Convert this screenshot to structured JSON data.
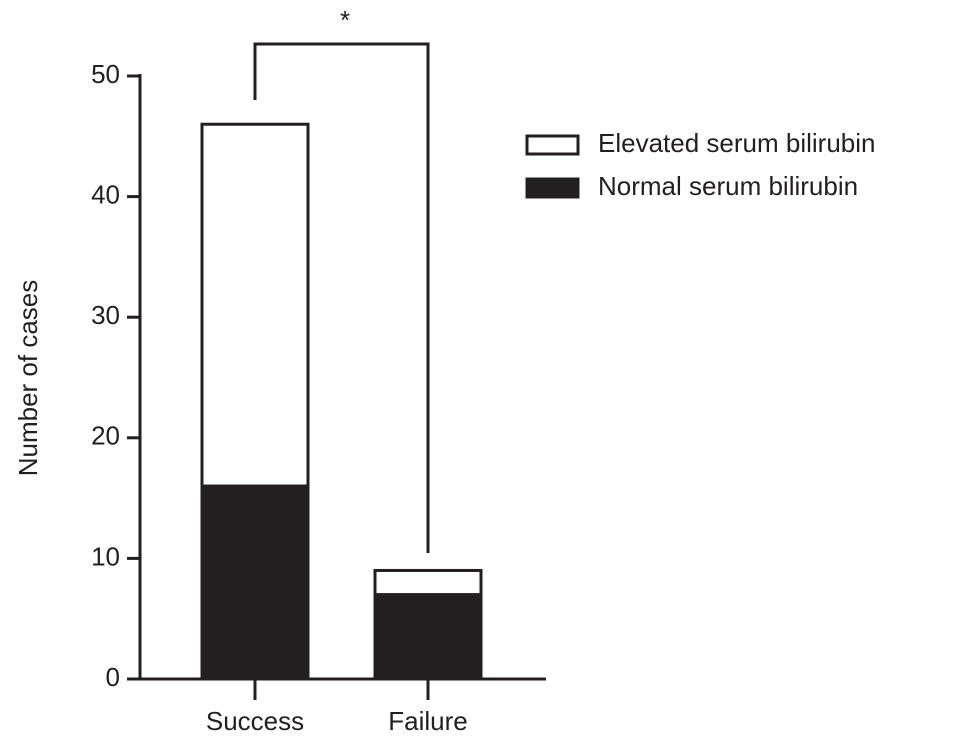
{
  "chart_data": {
    "type": "stacked_bar",
    "y_label": "Number of cases",
    "categories": [
      "Success",
      "Failure"
    ],
    "series": [
      {
        "name": "Elevated serum bilirubin",
        "color": "#ffffff",
        "values": [
          30,
          2
        ]
      },
      {
        "name": "Normal serum bilirubin",
        "color": "#231f20",
        "values": [
          16,
          7
        ]
      }
    ],
    "ylim": [
      0,
      50
    ],
    "yticks": [
      0,
      10,
      20,
      30,
      40,
      50
    ],
    "annotation": "*"
  }
}
